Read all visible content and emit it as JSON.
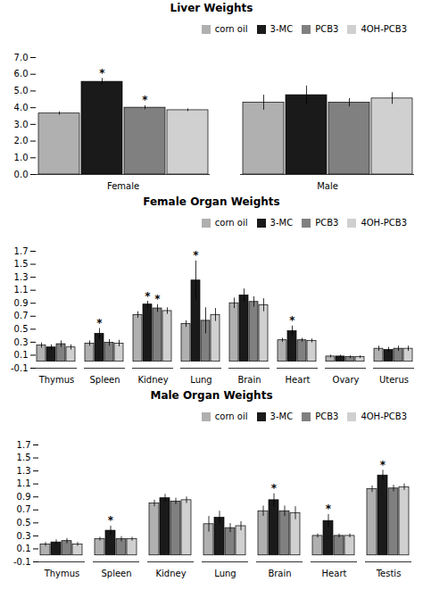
{
  "chart_data": [
    {
      "type": "bar",
      "title": "Liver Weights",
      "categories": [
        "Female",
        "Male"
      ],
      "series": [
        {
          "name": "corn oil",
          "color": "#b0b0b0",
          "values": [
            3.65,
            4.3
          ],
          "errors": [
            0.1,
            0.45
          ]
        },
        {
          "name": "3-MC",
          "color": "#1a1a1a",
          "values": [
            5.55,
            4.75
          ],
          "errors": [
            0.2,
            0.55
          ],
          "annotations": [
            "*",
            null
          ]
        },
        {
          "name": "PCB3",
          "color": "#808080",
          "values": [
            4.0,
            4.3
          ],
          "errors": [
            0.12,
            0.25
          ],
          "annotations": [
            "*",
            null
          ]
        },
        {
          "name": "4OH-PCB3",
          "color": "#d0d0d0",
          "values": [
            3.85,
            4.55
          ],
          "errors": [
            0.08,
            0.35
          ]
        }
      ],
      "ylim": [
        0.0,
        7.0
      ],
      "yticks": [
        {
          "value": 0,
          "label": "0.0"
        },
        {
          "value": 1,
          "label": "1.0"
        },
        {
          "value": 2,
          "label": "2.0"
        },
        {
          "value": 3,
          "label": "3.0"
        },
        {
          "value": 4,
          "label": "4.0"
        },
        {
          "value": 5,
          "label": "5.0"
        },
        {
          "value": 6,
          "label": "6.0"
        },
        {
          "value": 7,
          "label": "7.0"
        }
      ],
      "legend": "upper right"
    },
    {
      "type": "bar",
      "title": "Female Organ Weights",
      "categories": [
        "Thymus",
        "Spleen",
        "Kidney",
        "Lung",
        "Brain",
        "Heart",
        "Ovary",
        "Uterus"
      ],
      "series": [
        {
          "name": "corn oil",
          "color": "#b0b0b0",
          "values": [
            0.25,
            0.28,
            0.72,
            0.58,
            0.9,
            0.33,
            0.08,
            0.2
          ],
          "errors": [
            0.04,
            0.04,
            0.05,
            0.05,
            0.08,
            0.03,
            0.02,
            0.04
          ]
        },
        {
          "name": "3-MC",
          "color": "#1a1a1a",
          "values": [
            0.22,
            0.43,
            0.88,
            1.25,
            1.02,
            0.47,
            0.08,
            0.18
          ],
          "errors": [
            0.04,
            0.08,
            0.05,
            0.3,
            0.1,
            0.08,
            0.02,
            0.04
          ],
          "annotations": [
            null,
            "*",
            "*",
            "*",
            null,
            "*",
            null,
            null
          ]
        },
        {
          "name": "PCB3",
          "color": "#808080",
          "values": [
            0.27,
            0.29,
            0.82,
            0.63,
            0.92,
            0.33,
            0.07,
            0.2
          ],
          "errors": [
            0.05,
            0.05,
            0.06,
            0.2,
            0.08,
            0.03,
            0.02,
            0.04
          ],
          "annotations": [
            null,
            null,
            "*",
            null,
            null,
            null,
            null,
            null
          ]
        },
        {
          "name": "4OH-PCB3",
          "color": "#d0d0d0",
          "values": [
            0.22,
            0.28,
            0.78,
            0.72,
            0.87,
            0.32,
            0.07,
            0.2
          ],
          "errors": [
            0.04,
            0.05,
            0.05,
            0.1,
            0.1,
            0.03,
            0.02,
            0.04
          ]
        }
      ],
      "ylim": [
        -0.1,
        1.7
      ],
      "yticks": [
        -0.1,
        0.1,
        0.3,
        0.5,
        0.7,
        0.9,
        1.1,
        1.3,
        1.5,
        1.7
      ],
      "legend": "upper right"
    },
    {
      "type": "bar",
      "title": "Male Organ Weights",
      "categories": [
        "Thymus",
        "Spleen",
        "Kidney",
        "Lung",
        "Brain",
        "Heart",
        "Testis"
      ],
      "series": [
        {
          "name": "corn oil",
          "color": "#b0b0b0",
          "values": [
            0.17,
            0.25,
            0.8,
            0.48,
            0.68,
            0.3,
            1.02
          ],
          "errors": [
            0.03,
            0.03,
            0.05,
            0.12,
            0.08,
            0.03,
            0.05
          ]
        },
        {
          "name": "3-MC",
          "color": "#1a1a1a",
          "values": [
            0.2,
            0.38,
            0.88,
            0.58,
            0.85,
            0.53,
            1.23
          ],
          "errors": [
            0.04,
            0.07,
            0.06,
            0.1,
            0.1,
            0.1,
            0.08
          ],
          "annotations": [
            null,
            "*",
            null,
            null,
            "*",
            "*",
            "*"
          ]
        },
        {
          "name": "PCB3",
          "color": "#808080",
          "values": [
            0.22,
            0.25,
            0.83,
            0.42,
            0.68,
            0.3,
            1.03
          ],
          "errors": [
            0.04,
            0.04,
            0.05,
            0.07,
            0.08,
            0.03,
            0.05
          ]
        },
        {
          "name": "4OH-PCB3",
          "color": "#d0d0d0",
          "values": [
            0.17,
            0.25,
            0.85,
            0.45,
            0.65,
            0.3,
            1.05
          ],
          "errors": [
            0.03,
            0.03,
            0.05,
            0.07,
            0.1,
            0.03,
            0.05
          ]
        }
      ],
      "ylim": [
        -0.1,
        1.7
      ],
      "yticks": [
        -0.1,
        0.1,
        0.3,
        0.5,
        0.7,
        0.9,
        1.1,
        1.3,
        1.5,
        1.7
      ],
      "legend": "upper right"
    }
  ]
}
